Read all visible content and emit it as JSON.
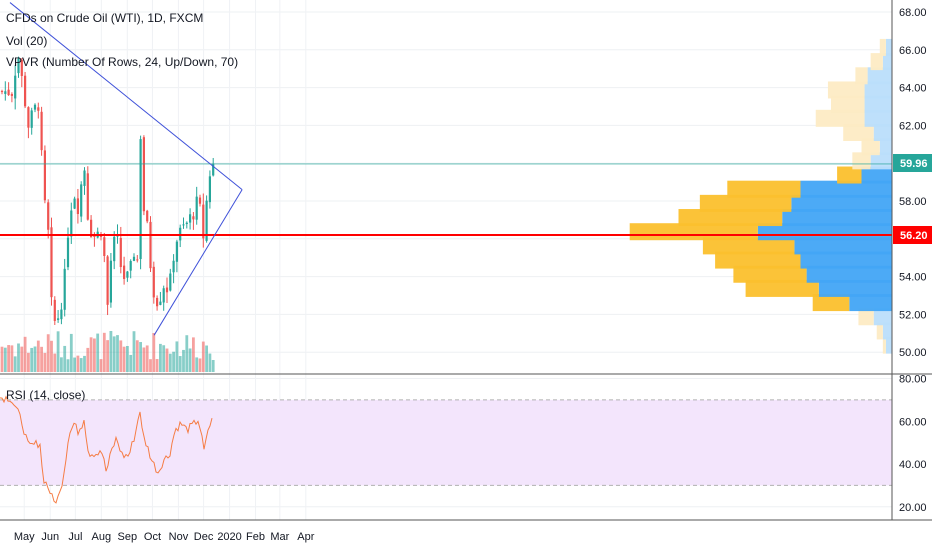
{
  "legend": {
    "title": "CFDs on Crude Oil (WTI), 1D, FXCM",
    "vol": "Vol (20)",
    "vpvr": "VPVR (Number Of Rows, 24, Up/Down, 70)",
    "rsi": "RSI (14, close)"
  },
  "badges": {
    "last_price": "59.96",
    "level_price": "56.20"
  },
  "colors": {
    "up": "#26a69a",
    "down": "#ef5350",
    "trendline": "#3f51d9",
    "level_line": "#ff0000",
    "rsi_line": "#f57c44",
    "rsi_band": "#f3e5fc",
    "vpvr_up": "#42a5f5",
    "vpvr_down": "#fbc02d"
  },
  "chart_data": [
    {
      "type": "candlestick",
      "title": "CFDs on Crude Oil (WTI), 1D, FXCM",
      "x_ticks": [
        "May",
        "Jun",
        "Jul",
        "Aug",
        "Sep",
        "Oct",
        "Nov",
        "Dec",
        "2020",
        "Feb",
        "Mar",
        "Apr"
      ],
      "y_ticks": [
        "50.00",
        "52.00",
        "54.00",
        "56.00",
        "58.00",
        "60.00",
        "62.00",
        "64.00",
        "66.00",
        "68.00"
      ],
      "ylim": [
        49.2,
        68.4
      ],
      "last_price": 59.96,
      "horizontal_level": 56.2,
      "price_path": [
        [
          "2019-04-17",
          63.8
        ],
        [
          "2019-04-23",
          65.9
        ],
        [
          "2019-04-29",
          64.2
        ],
        [
          "2019-05-06",
          62.0
        ],
        [
          "2019-05-13",
          62.8
        ],
        [
          "2019-05-20",
          63.3
        ],
        [
          "2019-05-23",
          58.0
        ],
        [
          "2019-05-29",
          57.4
        ],
        [
          "2019-05-31",
          53.5
        ],
        [
          "2019-06-05",
          51.5
        ],
        [
          "2019-06-12",
          52.0
        ],
        [
          "2019-06-18",
          53.8
        ],
        [
          "2019-06-24",
          57.5
        ],
        [
          "2019-07-01",
          58.5
        ],
        [
          "2019-07-05",
          57.5
        ],
        [
          "2019-07-11",
          60.3
        ],
        [
          "2019-07-17",
          56.6
        ],
        [
          "2019-07-25",
          56.1
        ],
        [
          "2019-08-01",
          56.5
        ],
        [
          "2019-08-05",
          54.8
        ],
        [
          "2019-08-07",
          51.6
        ],
        [
          "2019-08-13",
          55.2
        ],
        [
          "2019-08-19",
          56.2
        ],
        [
          "2019-08-26",
          54.0
        ],
        [
          "2019-09-03",
          53.9
        ],
        [
          "2019-09-11",
          55.8
        ],
        [
          "2019-09-13",
          54.8
        ],
        [
          "2019-09-16",
          62.9
        ],
        [
          "2019-09-19",
          58.0
        ],
        [
          "2019-09-25",
          56.5
        ],
        [
          "2019-10-01",
          53.5
        ],
        [
          "2019-10-08",
          52.6
        ],
        [
          "2019-10-14",
          53.6
        ],
        [
          "2019-10-21",
          53.3
        ],
        [
          "2019-10-28",
          55.8
        ],
        [
          "2019-11-04",
          56.4
        ],
        [
          "2019-11-11",
          56.8
        ],
        [
          "2019-11-18",
          57.3
        ],
        [
          "2019-11-25",
          58.1
        ],
        [
          "2019-12-02",
          55.7
        ],
        [
          "2019-12-06",
          59.2
        ],
        [
          "2019-12-13",
          59.96
        ]
      ],
      "trendlines": [
        {
          "from": [
            "2019-04-14",
            68.5
          ],
          "to": [
            "2020-01-16",
            58.6
          ]
        },
        {
          "from": [
            "2019-10-03",
            50.9
          ],
          "to": [
            "2020-01-16",
            58.6
          ]
        }
      ]
    },
    {
      "type": "bar",
      "title": "Vol (20)",
      "note": "volume histogram, colored by candle direction"
    },
    {
      "type": "bar",
      "title": "VPVR (Number Of Rows, 24, Up/Down, 70)",
      "bins_price": [
        50.0,
        50.75,
        51.5,
        52.25,
        53.0,
        53.75,
        54.5,
        55.25,
        56.0,
        56.75,
        57.5,
        58.25,
        59.0,
        59.75,
        60.5,
        61.25,
        62.0,
        62.75,
        63.5,
        64.25,
        65.0,
        65.75
      ],
      "up_volume": [
        2,
        3,
        6,
        14,
        24,
        28,
        30,
        32,
        44,
        36,
        33,
        30,
        10,
        7,
        4,
        6,
        9,
        9,
        9,
        8,
        3,
        2
      ],
      "down_volume": [
        1,
        2,
        5,
        12,
        24,
        24,
        28,
        30,
        42,
        34,
        30,
        24,
        8,
        6,
        6,
        10,
        16,
        11,
        12,
        4,
        4,
        2
      ]
    },
    {
      "type": "line",
      "title": "RSI (14, close)",
      "y_ticks": [
        "20.00",
        "40.00",
        "60.00",
        "80.00"
      ],
      "ylim": [
        16,
        80
      ],
      "band": [
        30,
        70
      ],
      "values_path": [
        [
          "2019-04-14",
          71
        ],
        [
          "2019-04-20",
          67
        ],
        [
          "2019-04-28",
          60
        ],
        [
          "2019-05-06",
          48
        ],
        [
          "2019-05-13",
          49
        ],
        [
          "2019-05-20",
          50
        ],
        [
          "2019-05-23",
          34
        ],
        [
          "2019-05-31",
          28
        ],
        [
          "2019-06-05",
          22
        ],
        [
          "2019-06-12",
          25
        ],
        [
          "2019-06-18",
          38
        ],
        [
          "2019-06-24",
          56
        ],
        [
          "2019-07-01",
          60
        ],
        [
          "2019-07-05",
          52
        ],
        [
          "2019-07-11",
          62
        ],
        [
          "2019-07-17",
          45
        ],
        [
          "2019-07-25",
          45
        ],
        [
          "2019-08-01",
          47
        ],
        [
          "2019-08-07",
          36
        ],
        [
          "2019-08-13",
          46
        ],
        [
          "2019-08-19",
          52
        ],
        [
          "2019-08-26",
          44
        ],
        [
          "2019-09-03",
          44
        ],
        [
          "2019-09-11",
          55
        ],
        [
          "2019-09-16",
          66
        ],
        [
          "2019-09-19",
          54
        ],
        [
          "2019-09-25",
          48
        ],
        [
          "2019-10-01",
          41
        ],
        [
          "2019-10-08",
          36
        ],
        [
          "2019-10-14",
          42
        ],
        [
          "2019-10-21",
          44
        ],
        [
          "2019-10-28",
          56
        ],
        [
          "2019-11-04",
          59
        ],
        [
          "2019-11-11",
          56
        ],
        [
          "2019-11-18",
          58
        ],
        [
          "2019-11-25",
          61
        ],
        [
          "2019-12-02",
          45
        ],
        [
          "2019-12-06",
          56
        ],
        [
          "2019-12-13",
          62
        ]
      ]
    }
  ]
}
